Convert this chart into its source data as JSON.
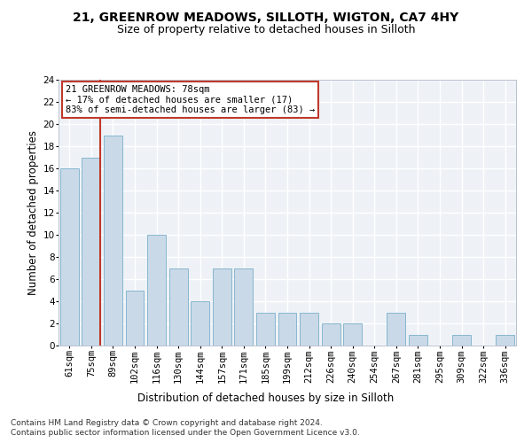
{
  "title_line1": "21, GREENROW MEADOWS, SILLOTH, WIGTON, CA7 4HY",
  "title_line2": "Size of property relative to detached houses in Silloth",
  "xlabel": "Distribution of detached houses by size in Silloth",
  "ylabel": "Number of detached properties",
  "categories": [
    "61sqm",
    "75sqm",
    "89sqm",
    "102sqm",
    "116sqm",
    "130sqm",
    "144sqm",
    "157sqm",
    "171sqm",
    "185sqm",
    "199sqm",
    "212sqm",
    "226sqm",
    "240sqm",
    "254sqm",
    "267sqm",
    "281sqm",
    "295sqm",
    "309sqm",
    "322sqm",
    "336sqm"
  ],
  "values": [
    16,
    17,
    19,
    5,
    10,
    7,
    4,
    7,
    7,
    3,
    3,
    3,
    2,
    2,
    0,
    3,
    1,
    0,
    1,
    0,
    1
  ],
  "bar_color": "#c9d9e8",
  "bar_edge_color": "#7aafc9",
  "annotation_text": "21 GREENROW MEADOWS: 78sqm\n← 17% of detached houses are smaller (17)\n83% of semi-detached houses are larger (83) →",
  "annotation_box_color": "white",
  "annotation_box_edge_color": "#c0392b",
  "vline_bar_index": 1,
  "ylim": [
    0,
    24
  ],
  "yticks": [
    0,
    2,
    4,
    6,
    8,
    10,
    12,
    14,
    16,
    18,
    20,
    22,
    24
  ],
  "footer_line1": "Contains HM Land Registry data © Crown copyright and database right 2024.",
  "footer_line2": "Contains public sector information licensed under the Open Government Licence v3.0.",
  "background_color": "#eef2f7",
  "grid_color": "#ffffff",
  "title_fontsize": 10,
  "subtitle_fontsize": 9,
  "axis_label_fontsize": 8.5,
  "tick_fontsize": 7.5,
  "annotation_fontsize": 7.5,
  "footer_fontsize": 6.5
}
